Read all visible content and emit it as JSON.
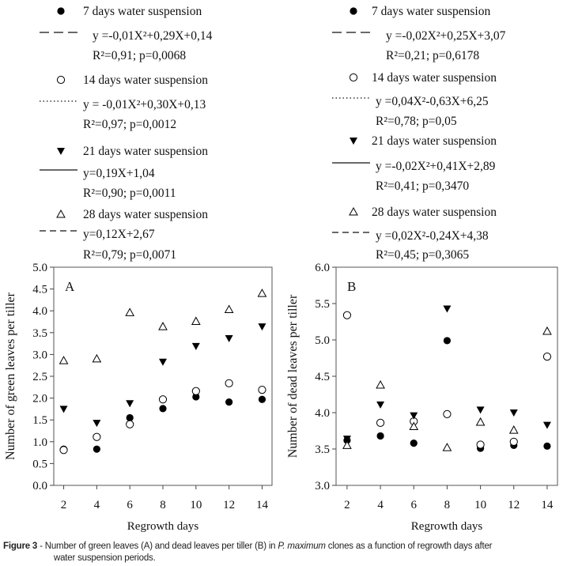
{
  "chart_data": [
    {
      "type": "scatter",
      "panel_label": "A",
      "xlabel": "Regrowth days",
      "ylabel": "Number of green leaves per tiller",
      "x": [
        2,
        4,
        6,
        8,
        10,
        12,
        14
      ],
      "xlim": [
        1.4,
        14.6
      ],
      "ylim": [
        0,
        5
      ],
      "yticks": [
        "0.0",
        "0.5",
        "1.0",
        "1.5",
        "2.0",
        "2.5",
        "3.0",
        "3.5",
        "4.0",
        "4.5",
        "5.0"
      ],
      "xticks": [
        "2",
        "4",
        "6",
        "8",
        "10",
        "12",
        "14"
      ],
      "grid": false,
      "series": [
        {
          "name": "7 days water suspension",
          "marker": "filled-circle",
          "line": "long-dash",
          "fit": "quadratic",
          "equation": "y =-0,01X²+0,29X+0,14",
          "stats": "R²=0,91; p=0,0068",
          "values": [
            0.83,
            0.83,
            1.55,
            1.76,
            2.03,
            1.91,
            1.97
          ]
        },
        {
          "name": "14 days water suspension",
          "marker": "open-circle",
          "line": "dotted",
          "fit": "quadratic",
          "equation": "y = -0,01X²+0,30X+0,13",
          "stats": "R²=0,97; p=0,0012",
          "values": [
            0.81,
            1.11,
            1.4,
            1.97,
            2.16,
            2.34,
            2.19
          ]
        },
        {
          "name": "21 days water suspension",
          "marker": "filled-triangle-down",
          "line": "solid",
          "fit": "linear",
          "equation": "y=0,19X+1,04",
          "stats": "R²=0,90; p=0,0011",
          "values": [
            1.75,
            1.43,
            1.88,
            2.83,
            3.19,
            3.37,
            3.64
          ]
        },
        {
          "name": "28 days water suspension",
          "marker": "open-triangle-up",
          "line": "dash",
          "fit": "linear",
          "equation": "y=0,12X+2,67",
          "stats": "R²=0,79; p=0,0071",
          "values": [
            2.86,
            2.9,
            3.96,
            3.64,
            3.76,
            4.03,
            4.4
          ]
        }
      ]
    },
    {
      "type": "scatter",
      "panel_label": "B",
      "xlabel": "Regrowth days",
      "ylabel": "Number of dead leaves per tiller",
      "x": [
        2,
        4,
        6,
        8,
        10,
        12,
        14
      ],
      "xlim": [
        1.34,
        14.62
      ],
      "ylim": [
        3,
        6
      ],
      "yticks": [
        "3.0",
        "3.5",
        "4.0",
        "4.5",
        "5.0",
        "5.5",
        "6.0"
      ],
      "xticks": [
        "2",
        "4",
        "6",
        "8",
        "10",
        "12",
        "14"
      ],
      "grid": false,
      "series": [
        {
          "name": "7 days water suspension",
          "marker": "filled-circle",
          "line": "long-dash",
          "fit": "quadratic",
          "equation": "y =-0,02X²+0,25X+3,07",
          "stats": "R²=0,21; p=0,6178",
          "values": [
            3.62,
            3.68,
            3.58,
            4.99,
            3.51,
            3.55,
            3.54
          ]
        },
        {
          "name": "14 days water suspension",
          "marker": "open-circle",
          "line": "dotted",
          "fit": "quadratic",
          "equation": "y =0,04X²-0,63X+6,25",
          "stats": "R²=0,78; p=0,05",
          "values": [
            5.34,
            3.86,
            3.88,
            3.98,
            3.56,
            3.6,
            4.77
          ]
        },
        {
          "name": "21 days water suspension",
          "marker": "filled-triangle-down",
          "line": "solid",
          "fit": "quadratic",
          "equation": "y =-0,02X²+0,41X+2,89",
          "stats": "R²=0,41; p=0,3470",
          "values": [
            3.64,
            4.11,
            3.96,
            5.43,
            4.04,
            4.0,
            3.83
          ]
        },
        {
          "name": "28 days water suspension",
          "marker": "open-triangle-up",
          "line": "dash",
          "fit": "quadratic",
          "equation": "y =0,02X²-0,24X+4,38",
          "stats": "R²=0,45; p=0,3065",
          "values": [
            3.55,
            4.38,
            3.81,
            3.52,
            3.87,
            3.76,
            5.12
          ]
        }
      ]
    }
  ],
  "caption": {
    "label": "Figure 3",
    "text_before": " - Number of green leaves (A) and dead leaves per tiller (B) in ",
    "species": "P. maximum",
    "text_after": " clones as a function of regrowth days after",
    "line2": "water suspension periods."
  }
}
